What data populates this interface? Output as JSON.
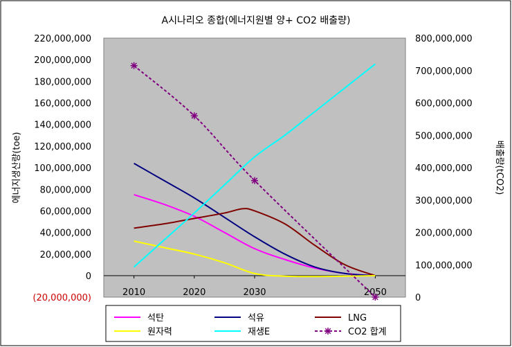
{
  "chart_data": {
    "type": "line",
    "title": "A시나리오 종합(에너지원별 양+ CO2 배출량)",
    "ylabel_left": "에너지생산량(toe)",
    "ylabel_right": "배출량(tCO2)",
    "xlabel": "",
    "x_ticks": [
      "2010",
      "2020",
      "2030",
      "2050"
    ],
    "x_range": [
      2005,
      2055
    ],
    "left_axis": {
      "ylim": [
        -20000000,
        220000000
      ],
      "ticks": [
        -20000000,
        0,
        20000000,
        40000000,
        60000000,
        80000000,
        100000000,
        120000000,
        140000000,
        160000000,
        180000000,
        200000000,
        220000000
      ],
      "tick_labels": [
        "(20,000,000)",
        "0",
        "20,000,000",
        "40,000,000",
        "60,000,000",
        "80,000,000",
        "100,000,000",
        "120,000,000",
        "140,000,000",
        "160,000,000",
        "180,000,000",
        "200,000,000",
        "220,000,000"
      ],
      "negative_color": "#cc0000"
    },
    "right_axis": {
      "ylim": [
        0,
        800000000
      ],
      "ticks": [
        0,
        100000000,
        200000000,
        300000000,
        400000000,
        500000000,
        600000000,
        700000000,
        800000000
      ],
      "tick_labels": [
        "0",
        "100,000,000",
        "200,000,000",
        "300,000,000",
        "400,000,000",
        "500,000,000",
        "600,000,000",
        "700,000,000",
        "800,000,000"
      ]
    },
    "plot_background": "#c0c0c0",
    "legend_position": "bottom",
    "series": [
      {
        "name": "석탄",
        "color": "#ff00ff",
        "axis": "left",
        "dash": false,
        "x": [
          2010,
          2015,
          2020,
          2025,
          2030,
          2035,
          2040,
          2045,
          2050
        ],
        "values": [
          75000000,
          66000000,
          55000000,
          40000000,
          25000000,
          15000000,
          7000000,
          2000000,
          0
        ]
      },
      {
        "name": "석유",
        "color": "#000080",
        "axis": "left",
        "dash": false,
        "x": [
          2010,
          2015,
          2020,
          2025,
          2030,
          2035,
          2040,
          2045,
          2050
        ],
        "values": [
          104000000,
          88000000,
          72000000,
          54000000,
          36000000,
          20000000,
          8000000,
          2000000,
          0
        ]
      },
      {
        "name": "LNG",
        "color": "#800000",
        "axis": "left",
        "dash": false,
        "x": [
          2010,
          2015,
          2020,
          2025,
          2028,
          2030,
          2035,
          2040,
          2045,
          2050
        ],
        "values": [
          44000000,
          48000000,
          53000000,
          58000000,
          62000000,
          60000000,
          48000000,
          28000000,
          10000000,
          0
        ]
      },
      {
        "name": "원자력",
        "color": "#ffff00",
        "axis": "left",
        "dash": false,
        "x": [
          2010,
          2015,
          2020,
          2025,
          2030,
          2035,
          2040,
          2045,
          2050
        ],
        "values": [
          32000000,
          26000000,
          20000000,
          12000000,
          2000000,
          -500000,
          -800000,
          -500000,
          0
        ]
      },
      {
        "name": "재생E",
        "color": "#00ffff",
        "axis": "left",
        "dash": false,
        "x": [
          2010,
          2015,
          2020,
          2025,
          2030,
          2035,
          2040,
          2045,
          2050
        ],
        "values": [
          8000000,
          33000000,
          58000000,
          84000000,
          110000000,
          130000000,
          152000000,
          174000000,
          196000000
        ]
      },
      {
        "name": "CO2 합계",
        "color": "#800080",
        "axis": "right",
        "dash": true,
        "marker": "star",
        "x": [
          2010,
          2020,
          2030,
          2050
        ],
        "values": [
          715000000,
          560000000,
          360000000,
          0
        ]
      }
    ]
  }
}
